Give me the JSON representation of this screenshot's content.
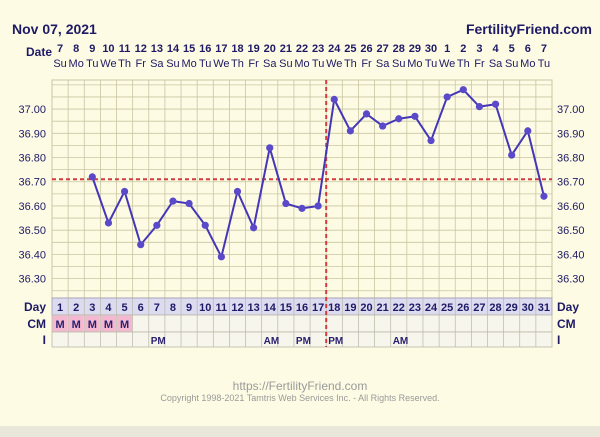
{
  "header": {
    "date": "Nov 07, 2021",
    "site": "FertilityFriend.com"
  },
  "labels": {
    "date": "Date",
    "day": "Day",
    "cm": "CM",
    "i": "I"
  },
  "footer": {
    "url": "https://FertilityFriend.com",
    "copyright": "Copyright 1998-2021 Tamtris Web Services Inc. - All Rights Reserved."
  },
  "colors": {
    "line": "#4536b8",
    "marker": "#5a49c8",
    "coverline": "#d23c3c",
    "cm_fill": "#f4b8d0",
    "grid": "#c9c6a3",
    "bg": "#fdfbe3"
  },
  "chart_data": {
    "type": "line",
    "dates": [
      "7",
      "8",
      "9",
      "10",
      "11",
      "12",
      "13",
      "14",
      "15",
      "16",
      "17",
      "18",
      "19",
      "20",
      "21",
      "22",
      "23",
      "24",
      "25",
      "26",
      "27",
      "28",
      "29",
      "30",
      "1",
      "2",
      "3",
      "4",
      "5",
      "6",
      "7"
    ],
    "weekdays": [
      "Su",
      "Mo",
      "Tu",
      "We",
      "Th",
      "Fr",
      "Sa",
      "Su",
      "Mo",
      "Tu",
      "We",
      "Th",
      "Fr",
      "Sa",
      "Su",
      "Mo",
      "Tu",
      "We",
      "Th",
      "Fr",
      "Sa",
      "Su",
      "Mo",
      "Tu",
      "We",
      "Th",
      "Fr",
      "Sa",
      "Su",
      "Mo",
      "Tu"
    ],
    "days": [
      1,
      2,
      3,
      4,
      5,
      6,
      7,
      8,
      9,
      10,
      11,
      12,
      13,
      14,
      15,
      16,
      17,
      18,
      19,
      20,
      21,
      22,
      23,
      24,
      25,
      26,
      27,
      28,
      29,
      30,
      31
    ],
    "temperatures": [
      null,
      null,
      36.72,
      36.53,
      36.66,
      36.44,
      36.52,
      36.62,
      36.61,
      36.52,
      36.39,
      36.66,
      36.51,
      36.84,
      36.61,
      36.59,
      36.6,
      37.04,
      36.91,
      36.98,
      36.93,
      36.96,
      36.97,
      36.87,
      37.05,
      37.08,
      37.01,
      37.02,
      36.81,
      36.91,
      36.64
    ],
    "y_ticks": [
      "37.00",
      "36.90",
      "36.80",
      "36.70",
      "36.60",
      "36.50",
      "36.40",
      "36.30"
    ],
    "ylim": [
      36.22,
      37.12
    ],
    "coverline": 36.71,
    "ovulation_day": 17,
    "cm": [
      "M",
      "M",
      "M",
      "M",
      "M",
      "",
      "",
      "",
      "",
      "",
      "",
      "",
      "",
      "",
      "",
      "",
      "",
      "",
      "",
      "",
      "",
      "",
      "",
      "",
      "",
      "",
      "",
      "",
      "",
      "",
      ""
    ],
    "intercourse": [
      "",
      "",
      "",
      "",
      "",
      "",
      "PM",
      "",
      "",
      "",
      "",
      "",
      "",
      "AM",
      "",
      "PM",
      "",
      "PM",
      "",
      "",
      "",
      "AM",
      "",
      "",
      "",
      "",
      "",
      "",
      "",
      "",
      ""
    ]
  }
}
